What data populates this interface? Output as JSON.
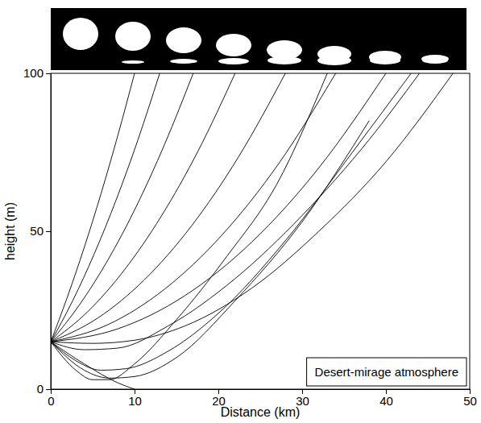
{
  "chart_data": {
    "type": "line",
    "x_label": "Distance (km)",
    "y_label": "height (m)",
    "annotation": "Desert-mirage atmosphere",
    "color": "#000000",
    "xlim": [
      0,
      50
    ],
    "ylim": [
      0,
      100
    ],
    "xticks": [
      0,
      10,
      20,
      30,
      40,
      50
    ],
    "yticks": [
      0,
      50,
      100
    ],
    "grid": false,
    "series": [
      {
        "x": [
          0,
          2,
          4,
          6,
          8,
          10
        ],
        "values": [
          15,
          29.3,
          44.9,
          61.9,
          80.3,
          100
        ]
      },
      {
        "x": [
          0,
          2.6,
          5.2,
          7.8,
          10.4,
          13
        ],
        "values": [
          15,
          27.9,
          42.9,
          59.9,
          78.9,
          100
        ]
      },
      {
        "x": [
          0,
          3.4,
          6.8,
          10.2,
          13.6,
          17
        ],
        "values": [
          15,
          26.6,
          40.8,
          57.8,
          77.6,
          100
        ]
      },
      {
        "x": [
          0,
          4.4,
          8.8,
          13.2,
          17.6,
          22
        ],
        "values": [
          15,
          24.5,
          37.8,
          54.8,
          75.5,
          100
        ]
      },
      {
        "x": [
          0,
          5.6,
          11.2,
          16.8,
          22.4,
          28
        ],
        "values": [
          15,
          22.5,
          34.7,
          51.7,
          73.5,
          100
        ]
      },
      {
        "x": [
          0,
          6.8,
          13.6,
          20.4,
          27.2,
          34
        ],
        "values": [
          15,
          20.4,
          31.7,
          48.7,
          71.4,
          100
        ]
      },
      {
        "x": [
          0,
          8,
          16,
          24,
          32,
          40
        ],
        "values": [
          15,
          19.1,
          29.6,
          46.6,
          70.1,
          100
        ]
      },
      {
        "x": [
          0,
          5,
          10,
          16,
          24,
          32,
          40,
          48
        ],
        "values": [
          15,
          14.5,
          15.5,
          20,
          32,
          50,
          72,
          100
        ]
      },
      {
        "x": [
          0,
          4,
          8,
          14,
          22,
          30,
          38,
          44
        ],
        "values": [
          15,
          12.5,
          13,
          20,
          35,
          55,
          79,
          100
        ]
      },
      {
        "x": [
          0,
          3,
          6,
          9,
          14,
          20,
          28,
          36,
          43
        ],
        "values": [
          15,
          9,
          6,
          6.5,
          12,
          24,
          47,
          75,
          100
        ]
      },
      {
        "x": [
          0,
          4,
          7,
          10,
          15,
          22,
          30,
          38
        ],
        "values": [
          15,
          6,
          3.5,
          4,
          10,
          28,
          53,
          85
        ]
      },
      {
        "x": [
          0,
          3,
          5,
          7,
          10,
          15,
          21,
          27,
          33
        ],
        "values": [
          15,
          6,
          3,
          3,
          8,
          22,
          42,
          65,
          100
        ]
      },
      {
        "x": [
          0,
          4,
          8,
          10
        ],
        "values": [
          15,
          8,
          2,
          0
        ]
      }
    ]
  }
}
